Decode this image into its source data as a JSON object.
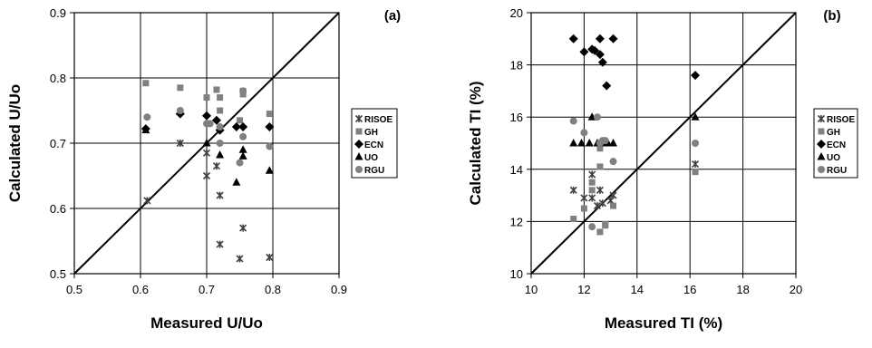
{
  "colors": {
    "RISOE": "#404040",
    "GH": "#808080",
    "ECN": "#000000",
    "UO": "#000000",
    "RGU": "#808080"
  },
  "legend": [
    {
      "label": "RISOE",
      "marker": "cross"
    },
    {
      "label": "GH",
      "marker": "square"
    },
    {
      "label": "ECN",
      "marker": "diamond"
    },
    {
      "label": "UO",
      "marker": "triangle"
    },
    {
      "label": "RGU",
      "marker": "circle"
    }
  ],
  "chart_data": [
    {
      "type": "scatter",
      "panel_label": "(a)",
      "xlabel": "Measured U/Uo",
      "ylabel": "Calculated U/Uo",
      "xlim": [
        0.5,
        0.9
      ],
      "ylim": [
        0.5,
        0.9
      ],
      "xticks": [
        "0.5",
        "0.6",
        "0.7",
        "0.8",
        "0.9"
      ],
      "yticks": [
        "0.5",
        "0.6",
        "0.7",
        "0.8",
        "0.9"
      ],
      "grid": true,
      "reference_line": "y=x",
      "legend_position": "right",
      "series": [
        {
          "name": "RISOE",
          "points": [
            [
              0.61,
              0.612
            ],
            [
              0.66,
              0.7
            ],
            [
              0.7,
              0.685
            ],
            [
              0.7,
              0.65
            ],
            [
              0.715,
              0.665
            ],
            [
              0.72,
              0.62
            ],
            [
              0.72,
              0.545
            ],
            [
              0.75,
              0.523
            ],
            [
              0.755,
              0.57
            ],
            [
              0.795,
              0.525
            ]
          ]
        },
        {
          "name": "GH",
          "points": [
            [
              0.608,
              0.792
            ],
            [
              0.66,
              0.785
            ],
            [
              0.7,
              0.77
            ],
            [
              0.715,
              0.782
            ],
            [
              0.72,
              0.77
            ],
            [
              0.72,
              0.75
            ],
            [
              0.75,
              0.735
            ],
            [
              0.755,
              0.78
            ],
            [
              0.755,
              0.775
            ],
            [
              0.795,
              0.745
            ]
          ]
        },
        {
          "name": "ECN",
          "points": [
            [
              0.608,
              0.722
            ],
            [
              0.66,
              0.745
            ],
            [
              0.7,
              0.742
            ],
            [
              0.715,
              0.735
            ],
            [
              0.72,
              0.72
            ],
            [
              0.745,
              0.725
            ],
            [
              0.755,
              0.725
            ],
            [
              0.795,
              0.725
            ]
          ]
        },
        {
          "name": "UO",
          "points": [
            [
              0.608,
              0.72
            ],
            [
              0.66,
              0.748
            ],
            [
              0.7,
              0.7
            ],
            [
              0.72,
              0.682
            ],
            [
              0.745,
              0.64
            ],
            [
              0.755,
              0.68
            ],
            [
              0.755,
              0.69
            ],
            [
              0.795,
              0.658
            ]
          ]
        },
        {
          "name": "RGU",
          "points": [
            [
              0.61,
              0.74
            ],
            [
              0.66,
              0.75
            ],
            [
              0.7,
              0.73
            ],
            [
              0.705,
              0.73
            ],
            [
              0.72,
              0.7
            ],
            [
              0.72,
              0.725
            ],
            [
              0.75,
              0.67
            ],
            [
              0.755,
              0.78
            ],
            [
              0.755,
              0.71
            ],
            [
              0.795,
              0.695
            ]
          ]
        }
      ]
    },
    {
      "type": "scatter",
      "panel_label": "(b)",
      "xlabel": "Measured  TI  (%)",
      "ylabel": "Calculated  TI   (%)",
      "xlim": [
        10,
        20
      ],
      "ylim": [
        10,
        20
      ],
      "xticks": [
        "10",
        "12",
        "14",
        "16",
        "18",
        "20"
      ],
      "yticks": [
        "10",
        "12",
        "14",
        "16",
        "18",
        "20"
      ],
      "grid": true,
      "reference_line": "y=x",
      "legend_position": "right",
      "series": [
        {
          "name": "RISOE",
          "points": [
            [
              11.6,
              13.2
            ],
            [
              12.0,
              12.9
            ],
            [
              12.3,
              13.8
            ],
            [
              12.3,
              12.9
            ],
            [
              12.5,
              12.6
            ],
            [
              12.6,
              13.2
            ],
            [
              12.7,
              12.7
            ],
            [
              13.0,
              12.8
            ],
            [
              13.1,
              13.0
            ],
            [
              16.2,
              14.2
            ]
          ]
        },
        {
          "name": "GH",
          "points": [
            [
              11.6,
              12.1
            ],
            [
              12.0,
              12.5
            ],
            [
              12.3,
              13.5
            ],
            [
              12.3,
              13.2
            ],
            [
              12.6,
              11.6
            ],
            [
              12.6,
              14.1
            ],
            [
              12.6,
              14.8
            ],
            [
              12.8,
              11.9
            ],
            [
              12.8,
              11.85
            ],
            [
              13.1,
              12.6
            ],
            [
              16.2,
              13.9
            ]
          ]
        },
        {
          "name": "ECN",
          "points": [
            [
              11.6,
              19.0
            ],
            [
              12.0,
              18.5
            ],
            [
              12.3,
              18.6
            ],
            [
              12.4,
              18.55
            ],
            [
              12.6,
              19.0
            ],
            [
              12.6,
              18.4
            ],
            [
              12.7,
              18.1
            ],
            [
              12.85,
              17.2
            ],
            [
              13.1,
              19.0
            ],
            [
              16.2,
              17.6
            ]
          ]
        },
        {
          "name": "UO",
          "points": [
            [
              11.6,
              15.0
            ],
            [
              11.9,
              15.0
            ],
            [
              12.2,
              15.0
            ],
            [
              12.3,
              16.0
            ],
            [
              12.5,
              15.0
            ],
            [
              12.7,
              15.0
            ],
            [
              12.9,
              15.0
            ],
            [
              13.1,
              15.0
            ],
            [
              16.2,
              16.0
            ]
          ]
        },
        {
          "name": "RGU",
          "points": [
            [
              11.6,
              15.85
            ],
            [
              12.0,
              15.4
            ],
            [
              12.3,
              11.8
            ],
            [
              12.5,
              16.0
            ],
            [
              12.6,
              15.0
            ],
            [
              12.7,
              15.1
            ],
            [
              12.8,
              15.1
            ],
            [
              13.1,
              14.3
            ],
            [
              16.2,
              15.0
            ]
          ]
        }
      ]
    }
  ]
}
